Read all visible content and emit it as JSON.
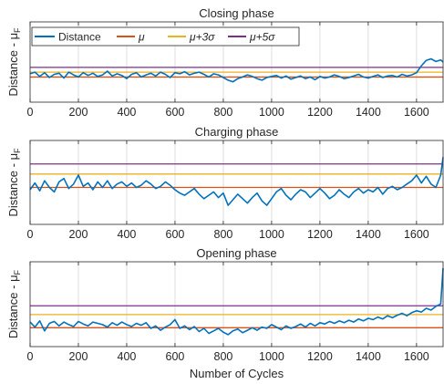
{
  "figure": {
    "xlabel": "Number of Cycles",
    "colors": {
      "distance": "#0072BD",
      "mu": "#D95319",
      "mu3": "#EDB120",
      "mu5": "#7E2F8E",
      "grid": "#dedede",
      "axis": "#262626"
    }
  },
  "legend": {
    "items": [
      {
        "key": "distance",
        "label": "Distance"
      },
      {
        "key": "mu",
        "label": "μ"
      },
      {
        "key": "mu3",
        "label": "μ+3σ"
      },
      {
        "key": "mu5",
        "label": "μ+5σ"
      }
    ]
  },
  "chart_data": [
    {
      "type": "line",
      "title": "Closing phase",
      "xlabel": "",
      "ylabel": "Distance - μF",
      "ylabel_main": "Distance - μ",
      "ylabel_sub": "F",
      "xlim": [
        0,
        1710
      ],
      "ylim": [
        -5,
        10
      ],
      "xticks": [
        0,
        200,
        400,
        600,
        800,
        1000,
        1200,
        1400,
        1600
      ],
      "yticks_shown": false,
      "grid": "x-only",
      "legend_placement": "top-left",
      "thresholds": {
        "mu": -0.3,
        "mu3": 0.6,
        "mu5": 1.5
      },
      "series": [
        {
          "name": "Distance",
          "x": [
            0,
            20,
            40,
            60,
            80,
            100,
            120,
            140,
            160,
            180,
            200,
            220,
            240,
            260,
            280,
            300,
            320,
            340,
            360,
            380,
            400,
            420,
            440,
            460,
            480,
            500,
            520,
            540,
            560,
            580,
            600,
            620,
            640,
            660,
            680,
            700,
            720,
            740,
            760,
            780,
            800,
            820,
            840,
            860,
            880,
            900,
            920,
            940,
            960,
            980,
            1000,
            1020,
            1040,
            1060,
            1080,
            1100,
            1120,
            1140,
            1160,
            1180,
            1200,
            1220,
            1240,
            1260,
            1280,
            1300,
            1320,
            1340,
            1360,
            1380,
            1400,
            1420,
            1440,
            1460,
            1480,
            1500,
            1520,
            1540,
            1560,
            1580,
            1600,
            1620,
            1640,
            1660,
            1680,
            1700,
            1710
          ],
          "y": [
            0.3,
            0.6,
            -0.2,
            0.5,
            -0.4,
            0.2,
            0.4,
            -0.5,
            0.6,
            0.1,
            -0.3,
            0.5,
            0.0,
            0.4,
            -0.2,
            0.1,
            0.8,
            -0.1,
            0.3,
            0.0,
            -0.6,
            0.2,
            0.5,
            -0.3,
            0.1,
            0.4,
            -0.1,
            0.6,
            0.2,
            -0.4,
            0.5,
            0.3,
            0.7,
            0.1,
            0.4,
            0.6,
            0.2,
            -0.3,
            0.3,
            0.1,
            -0.4,
            -0.9,
            -1.2,
            -0.6,
            -0.3,
            0.1,
            -0.2,
            -0.6,
            -0.9,
            -0.4,
            -0.2,
            0.0,
            -0.5,
            -0.1,
            -0.7,
            -0.4,
            -0.1,
            -0.6,
            -0.3,
            -0.8,
            -0.2,
            -0.5,
            -0.3,
            0.1,
            -0.2,
            -0.6,
            -0.4,
            -0.1,
            0.2,
            -0.3,
            -0.5,
            -0.2,
            0.1,
            -0.4,
            -0.1,
            0.0,
            -0.3,
            0.2,
            -0.1,
            0.1,
            0.5,
            1.8,
            2.8,
            3.1,
            2.6,
            2.9,
            2.5
          ]
        }
      ]
    },
    {
      "type": "line",
      "title": "Charging phase",
      "xlabel": "",
      "ylabel": "Distance - μF",
      "ylabel_main": "Distance - μ",
      "ylabel_sub": "F",
      "xlim": [
        0,
        1710
      ],
      "ylim": [
        -5,
        10
      ],
      "xticks": [
        0,
        200,
        400,
        600,
        800,
        1000,
        1200,
        1400,
        1600
      ],
      "yticks_shown": false,
      "grid": "x-only",
      "thresholds": {
        "mu": 1.6,
        "mu3": 4.0,
        "mu5": 5.8
      },
      "series": [
        {
          "name": "Distance",
          "x": [
            0,
            20,
            40,
            60,
            80,
            100,
            120,
            140,
            160,
            180,
            200,
            220,
            240,
            260,
            280,
            300,
            320,
            340,
            360,
            380,
            400,
            420,
            440,
            460,
            480,
            500,
            520,
            540,
            560,
            580,
            600,
            620,
            640,
            660,
            680,
            700,
            720,
            740,
            760,
            780,
            800,
            820,
            840,
            860,
            880,
            900,
            920,
            940,
            960,
            980,
            1000,
            1020,
            1040,
            1060,
            1080,
            1100,
            1120,
            1140,
            1160,
            1180,
            1200,
            1220,
            1240,
            1260,
            1280,
            1300,
            1320,
            1340,
            1360,
            1380,
            1400,
            1420,
            1440,
            1460,
            1480,
            1500,
            1520,
            1540,
            1560,
            1580,
            1600,
            1620,
            1640,
            1660,
            1680,
            1700,
            1710
          ],
          "y": [
            1.2,
            2.4,
            1.0,
            2.8,
            1.6,
            0.8,
            2.6,
            3.2,
            1.4,
            2.2,
            3.8,
            1.8,
            2.4,
            1.2,
            2.6,
            1.6,
            2.8,
            1.4,
            2.2,
            2.6,
            1.8,
            2.4,
            1.6,
            2.0,
            2.8,
            2.2,
            1.4,
            1.8,
            2.6,
            2.0,
            1.2,
            0.6,
            0.2,
            0.8,
            1.4,
            0.4,
            -0.4,
            0.2,
            0.8,
            -0.2,
            0.6,
            -1.6,
            -0.6,
            0.4,
            -0.4,
            -1.2,
            -0.2,
            0.6,
            -0.8,
            -1.6,
            -0.4,
            0.8,
            1.4,
            0.2,
            -0.6,
            0.4,
            1.2,
            0.8,
            -0.2,
            0.6,
            1.4,
            0.6,
            -0.4,
            0.2,
            1.2,
            0.4,
            -0.2,
            0.8,
            1.4,
            0.6,
            1.2,
            0.8,
            1.6,
            0.4,
            1.4,
            1.8,
            1.2,
            1.6,
            2.2,
            2.8,
            3.8,
            2.4,
            3.6,
            2.2,
            1.6,
            3.8,
            7.0
          ]
        }
      ]
    },
    {
      "type": "line",
      "title": "Opening phase",
      "xlabel": "Number of Cycles",
      "ylabel": "Distance - μF",
      "ylabel_main": "Distance - μ",
      "ylabel_sub": "F",
      "xlim": [
        0,
        1710
      ],
      "ylim": [
        -3.5,
        10
      ],
      "xticks": [
        0,
        200,
        400,
        600,
        800,
        1000,
        1200,
        1400,
        1600
      ],
      "yticks_shown": false,
      "grid": "x-only",
      "thresholds": {
        "mu": -0.5,
        "mu3": 1.6,
        "mu5": 3.0
      },
      "series": [
        {
          "name": "Distance",
          "x": [
            0,
            20,
            40,
            60,
            80,
            100,
            120,
            140,
            160,
            180,
            200,
            220,
            240,
            260,
            280,
            300,
            320,
            340,
            360,
            380,
            400,
            420,
            440,
            460,
            480,
            500,
            520,
            540,
            560,
            580,
            600,
            620,
            640,
            660,
            680,
            700,
            720,
            740,
            760,
            780,
            800,
            820,
            840,
            860,
            880,
            900,
            920,
            940,
            960,
            980,
            1000,
            1020,
            1040,
            1060,
            1080,
            1100,
            1120,
            1140,
            1160,
            1180,
            1200,
            1220,
            1240,
            1260,
            1280,
            1300,
            1320,
            1340,
            1360,
            1380,
            1400,
            1420,
            1440,
            1460,
            1480,
            1500,
            1520,
            1540,
            1560,
            1580,
            1600,
            1620,
            1640,
            1660,
            1680,
            1700,
            1710
          ],
          "y": [
            0.4,
            -0.4,
            0.6,
            -1.0,
            0.2,
            0.5,
            -0.2,
            0.4,
            0.0,
            -0.3,
            0.5,
            0.1,
            -0.2,
            0.4,
            0.2,
            0.0,
            -0.4,
            0.3,
            -0.1,
            0.4,
            0.0,
            -0.3,
            0.2,
            -0.1,
            0.3,
            -0.6,
            -0.2,
            -0.9,
            -0.4,
            0.0,
            0.8,
            -0.6,
            -0.2,
            -0.8,
            -0.3,
            -1.1,
            -0.6,
            -1.4,
            -1.0,
            -0.6,
            -1.2,
            -1.6,
            -1.0,
            -0.7,
            -1.3,
            -0.9,
            -0.5,
            -0.9,
            -0.4,
            -0.6,
            0.0,
            -0.4,
            -0.8,
            -0.2,
            -0.6,
            -0.3,
            0.1,
            -0.4,
            0.2,
            -0.2,
            0.3,
            0.1,
            0.5,
            0.2,
            0.6,
            0.3,
            0.7,
            0.4,
            0.9,
            0.6,
            1.0,
            0.8,
            1.2,
            0.9,
            1.4,
            1.1,
            1.5,
            1.8,
            1.4,
            1.9,
            2.2,
            2.0,
            2.6,
            2.3,
            2.9,
            3.3,
            9.0
          ]
        }
      ]
    }
  ]
}
